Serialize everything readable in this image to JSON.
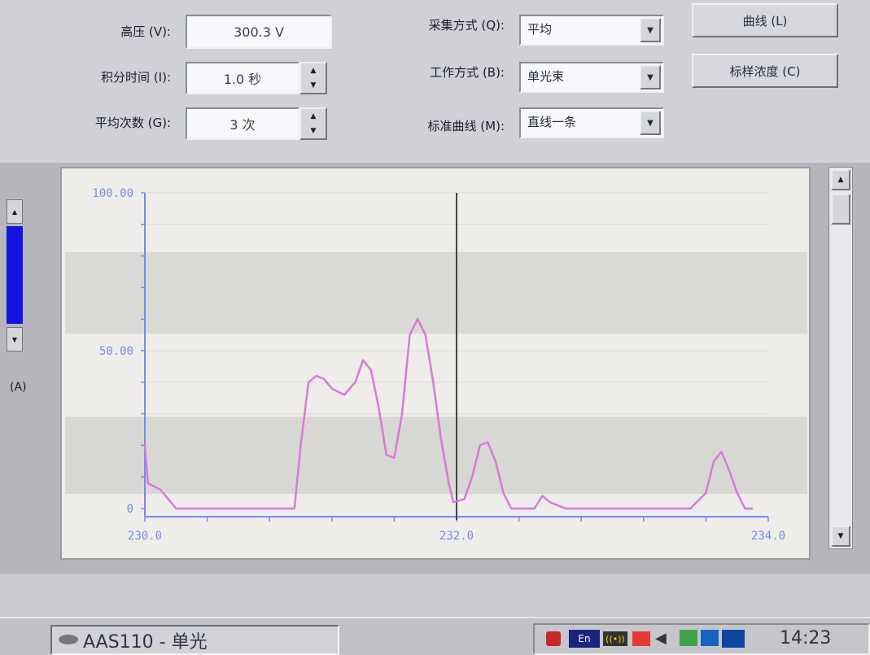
{
  "params": {
    "voltage": {
      "label": "高压 (V):",
      "value": "300.3 V"
    },
    "integration": {
      "label": "积分时间 (I):",
      "value": "1.0 秒"
    },
    "average": {
      "label": "平均次数 (G):",
      "value": "3 次"
    },
    "acquisition": {
      "label": "采集方式 (Q):",
      "value": "平均"
    },
    "work_mode": {
      "label": "工作方式 (B):",
      "value": "单光束"
    },
    "standard_curve": {
      "label": "标准曲线 (M):",
      "value": "直线一条"
    }
  },
  "buttons": {
    "curve": "曲线 (L)",
    "calibrate": "标样浓度 (C)"
  },
  "left_label": "(A)",
  "chart_data": {
    "type": "line",
    "x": [
      230.0,
      230.02,
      230.1,
      230.2,
      230.3,
      230.5,
      230.6,
      230.8,
      230.9,
      230.96,
      231.0,
      231.05,
      231.1,
      231.15,
      231.2,
      231.28,
      231.35,
      231.4,
      231.45,
      231.5,
      231.55,
      231.6,
      231.65,
      231.7,
      231.75,
      231.8,
      231.85,
      231.9,
      231.95,
      231.98,
      232.05,
      232.1,
      232.15,
      232.2,
      232.25,
      232.3,
      232.35,
      232.4,
      232.45,
      232.5,
      232.55,
      232.6,
      232.7,
      232.8,
      232.9,
      233.0,
      233.1,
      233.3,
      233.5,
      233.6,
      233.65,
      233.7,
      233.75,
      233.8,
      233.85,
      233.9
    ],
    "y": [
      20,
      8,
      6,
      0,
      0,
      0,
      0,
      0,
      0,
      0,
      20,
      40,
      42,
      41,
      38,
      36,
      40,
      47,
      44,
      32,
      17,
      16,
      30,
      55,
      60,
      55,
      40,
      22,
      8,
      2,
      3,
      10,
      20,
      21,
      15,
      5,
      0,
      0,
      0,
      0,
      4,
      2,
      0,
      0,
      0,
      0,
      0,
      0,
      0,
      5,
      15,
      18,
      12,
      5,
      0,
      0
    ],
    "x_ticks": [
      "230.0",
      "232.0",
      "234.0"
    ],
    "y_ticks": [
      "100.00",
      "50.00",
      "0"
    ],
    "xlim": [
      230.0,
      234.0
    ],
    "ylim": [
      0,
      100
    ],
    "cursor_x": 232.0,
    "line_color": "#d77ad9",
    "axis_color": "#7a88ee",
    "grid": true
  },
  "taskbar": {
    "app": "AAS110 - 单光",
    "clock": "14:23",
    "tray_lang": "En"
  }
}
